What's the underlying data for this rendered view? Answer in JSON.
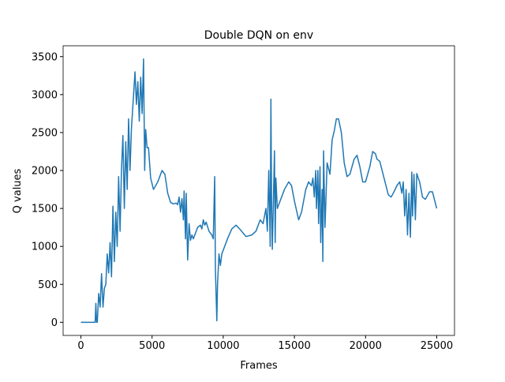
{
  "chart_data": {
    "type": "line",
    "title": "Double DQN on env",
    "xlabel": "Frames",
    "ylabel": "Q values",
    "x": [
      0,
      1000,
      1050,
      1100,
      1150,
      1250,
      1350,
      1450,
      1550,
      1650,
      1750,
      1850,
      1950,
      2050,
      2150,
      2250,
      2350,
      2450,
      2550,
      2650,
      2750,
      2850,
      2950,
      3050,
      3150,
      3250,
      3350,
      3450,
      3550,
      3700,
      3800,
      3900,
      4000,
      4100,
      4200,
      4300,
      4400,
      4480,
      4550,
      4650,
      4750,
      4900,
      5100,
      5400,
      5700,
      5900,
      6100,
      6300,
      6500,
      6700,
      6800,
      6900,
      7000,
      7100,
      7200,
      7250,
      7350,
      7400,
      7500,
      7600,
      7700,
      7800,
      7900,
      8000,
      8200,
      8400,
      8500,
      8600,
      8700,
      8800,
      9000,
      9200,
      9300,
      9400,
      9450,
      9550,
      9600,
      9700,
      9800,
      9900,
      10000,
      10300,
      10600,
      10900,
      11200,
      11600,
      12000,
      12300,
      12600,
      12800,
      13000,
      13100,
      13200,
      13300,
      13350,
      13400,
      13450,
      13500,
      13600,
      13650,
      13700,
      13800,
      14000,
      14300,
      14600,
      14800,
      15000,
      15300,
      15500,
      15800,
      16000,
      16200,
      16300,
      16400,
      16500,
      16550,
      16650,
      16700,
      16800,
      16850,
      16950,
      17000,
      17050,
      17150,
      17300,
      17500,
      17650,
      17800,
      17950,
      18100,
      18300,
      18500,
      18700,
      18900,
      19200,
      19400,
      19600,
      19800,
      20000,
      20300,
      20500,
      20700,
      20800,
      21000,
      21300,
      21600,
      21800,
      22000,
      22200,
      22400,
      22550,
      22650,
      22750,
      22850,
      22950,
      23050,
      23150,
      23250,
      23300,
      23400,
      23500,
      23600,
      23700,
      23800,
      24000,
      24200,
      24500,
      24700,
      25000
    ],
    "series": [
      {
        "color": "#1f77b4",
        "values": [
          0,
          0,
          250,
          0,
          0,
          380,
          200,
          640,
          200,
          450,
          500,
          900,
          650,
          1050,
          600,
          1530,
          800,
          1450,
          1000,
          1920,
          1200,
          2000,
          2460,
          1500,
          2380,
          1750,
          2680,
          2000,
          2550,
          3000,
          3300,
          2870,
          3170,
          2650,
          3230,
          2750,
          3470,
          2000,
          2540,
          2300,
          2300,
          1900,
          1750,
          1850,
          2000,
          1950,
          1700,
          1580,
          1560,
          1570,
          1550,
          1650,
          1450,
          1630,
          1350,
          1730,
          1100,
          1700,
          820,
          1300,
          1080,
          1150,
          1100,
          1150,
          1250,
          1280,
          1230,
          1350,
          1280,
          1320,
          1200,
          1150,
          1100,
          1920,
          700,
          20,
          500,
          900,
          750,
          900,
          950,
          1100,
          1230,
          1280,
          1220,
          1130,
          1150,
          1200,
          1350,
          1300,
          1500,
          1200,
          2000,
          1000,
          2940,
          1500,
          960,
          1400,
          2260,
          1050,
          1900,
          1500,
          1600,
          1750,
          1850,
          1800,
          1600,
          1350,
          1450,
          1750,
          1850,
          1800,
          1900,
          1650,
          2000,
          1500,
          2000,
          1300,
          2050,
          1050,
          1750,
          800,
          2260,
          1250,
          2100,
          1950,
          2400,
          2520,
          2680,
          2680,
          2500,
          2100,
          1920,
          1950,
          2150,
          2200,
          2050,
          1850,
          1850,
          2050,
          2250,
          2220,
          2150,
          2120,
          1900,
          1680,
          1650,
          1720,
          1800,
          1850,
          1700,
          1850,
          1400,
          1750,
          1150,
          1700,
          1120,
          1980,
          1400,
          1950,
          1350,
          1960,
          1900,
          1850,
          1650,
          1620,
          1720,
          1720,
          1500
        ]
      }
    ],
    "xlim": [
      -1250,
      26250
    ],
    "ylim": [
      -173,
      3643
    ],
    "xticks": [
      0,
      5000,
      10000,
      15000,
      20000,
      25000
    ],
    "yticks": [
      0,
      500,
      1000,
      1500,
      2000,
      2500,
      3000,
      3500
    ]
  }
}
